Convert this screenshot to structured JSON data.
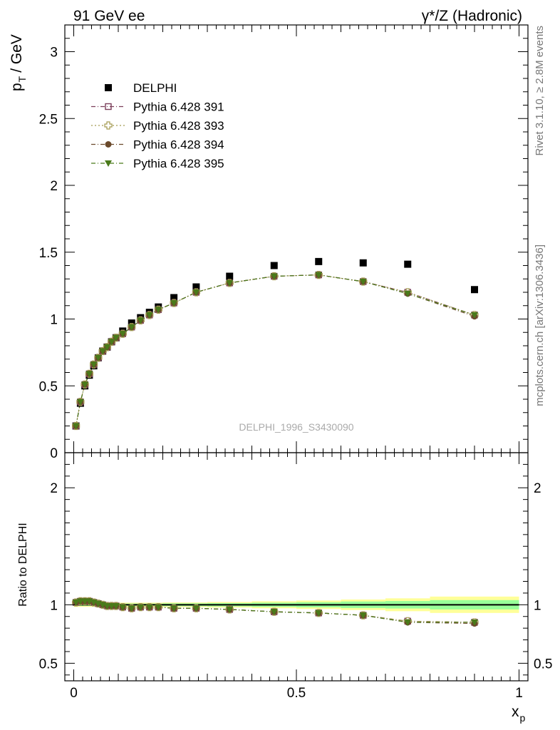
{
  "header": {
    "left": "91 GeV ee",
    "right": "γ*/Z (Hadronic)"
  },
  "side_labels": {
    "rivet": "Rivet 3.1.10, ≥ 2.8M events",
    "mcplots": "mcplots.cern.ch [arXiv:1306.3436]"
  },
  "watermark": "DELPHI_1996_S3430090",
  "chart_data": [
    {
      "type": "scatter",
      "panel": "main",
      "ylabel_main": "p",
      "ylabel_sub": "T",
      "ylabel_unit": "/ GeV",
      "xlabel_main": "x",
      "xlabel_sub": "p",
      "xlim": [
        -0.02,
        1.02
      ],
      "ylim": [
        0,
        3.2
      ],
      "yticks": [
        0,
        0.5,
        1,
        1.5,
        2,
        2.5,
        3
      ],
      "ytick_labels": [
        "0",
        "0.5",
        "1",
        "1.5",
        "2",
        "2.5",
        "3"
      ],
      "legend_position": "top-left",
      "x": [
        0.005,
        0.015,
        0.025,
        0.035,
        0.045,
        0.055,
        0.065,
        0.075,
        0.085,
        0.095,
        0.11,
        0.13,
        0.15,
        0.17,
        0.19,
        0.225,
        0.275,
        0.35,
        0.45,
        0.55,
        0.65,
        0.75,
        0.9
      ],
      "series": [
        {
          "name": "DELPHI",
          "color": "#000000",
          "marker": "square-filled",
          "values": [
            0.2,
            0.37,
            0.5,
            0.58,
            0.65,
            0.71,
            0.76,
            0.79,
            0.83,
            0.86,
            0.91,
            0.97,
            1.01,
            1.05,
            1.09,
            1.16,
            1.24,
            1.32,
            1.4,
            1.43,
            1.42,
            1.41,
            1.22
          ]
        },
        {
          "name": "Pythia 6.428 391",
          "color": "#7b3f5a",
          "marker": "square-open",
          "line": "dash-dot",
          "values": [
            0.2,
            0.38,
            0.51,
            0.59,
            0.66,
            0.71,
            0.76,
            0.79,
            0.83,
            0.86,
            0.89,
            0.94,
            0.99,
            1.03,
            1.07,
            1.12,
            1.2,
            1.27,
            1.32,
            1.33,
            1.28,
            1.2,
            1.03
          ]
        },
        {
          "name": "Pythia 6.428 393",
          "color": "#a39a50",
          "marker": "cross-open",
          "line": "dotted",
          "values": [
            0.2,
            0.38,
            0.51,
            0.59,
            0.66,
            0.71,
            0.76,
            0.79,
            0.83,
            0.86,
            0.89,
            0.94,
            0.99,
            1.03,
            1.07,
            1.12,
            1.2,
            1.27,
            1.32,
            1.33,
            1.28,
            1.2,
            1.03
          ]
        },
        {
          "name": "Pythia 6.428 394",
          "color": "#6b4a2b",
          "marker": "circle-filled",
          "line": "dash-dot",
          "values": [
            0.2,
            0.38,
            0.51,
            0.59,
            0.66,
            0.71,
            0.76,
            0.79,
            0.83,
            0.86,
            0.89,
            0.94,
            0.99,
            1.03,
            1.07,
            1.12,
            1.2,
            1.27,
            1.32,
            1.33,
            1.28,
            1.19,
            1.02
          ]
        },
        {
          "name": "Pythia 6.428 395",
          "color": "#4a7a1a",
          "marker": "triangle-down-filled",
          "line": "dash-dot",
          "values": [
            0.2,
            0.38,
            0.51,
            0.59,
            0.66,
            0.71,
            0.76,
            0.79,
            0.83,
            0.86,
            0.89,
            0.94,
            0.99,
            1.03,
            1.07,
            1.12,
            1.2,
            1.27,
            1.32,
            1.33,
            1.28,
            1.19,
            1.03
          ]
        }
      ]
    },
    {
      "type": "scatter",
      "panel": "ratio",
      "ylabel": "Ratio to DELPHI",
      "ylim": [
        0.35,
        2.3
      ],
      "yticks": [
        0.5,
        1,
        2
      ],
      "ytick_labels": [
        "0.5",
        "1",
        "2"
      ],
      "xticks": [
        0,
        0.5,
        1
      ],
      "xtick_labels": [
        "0",
        "0.5",
        "1"
      ],
      "reference": 1,
      "band_x": [
        0.0,
        0.1,
        0.2,
        0.3,
        0.4,
        0.5,
        0.6,
        0.7,
        0.8,
        1.0
      ],
      "band_inner": [
        0.01,
        0.01,
        0.012,
        0.014,
        0.018,
        0.022,
        0.028,
        0.032,
        0.04
      ],
      "band_outer": [
        0.018,
        0.018,
        0.02,
        0.024,
        0.03,
        0.036,
        0.045,
        0.055,
        0.07
      ],
      "x": [
        0.005,
        0.015,
        0.025,
        0.035,
        0.045,
        0.055,
        0.065,
        0.075,
        0.085,
        0.095,
        0.11,
        0.13,
        0.15,
        0.17,
        0.19,
        0.225,
        0.275,
        0.35,
        0.45,
        0.55,
        0.65,
        0.75,
        0.9
      ],
      "series": [
        {
          "name": "Pythia 6.428 391",
          "color": "#7b3f5a",
          "marker": "square-open",
          "values": [
            1.02,
            1.03,
            1.03,
            1.03,
            1.02,
            1.01,
            1.0,
            0.99,
            0.99,
            0.99,
            0.98,
            0.97,
            0.98,
            0.98,
            0.98,
            0.97,
            0.97,
            0.96,
            0.94,
            0.93,
            0.91,
            0.86,
            0.85
          ]
        },
        {
          "name": "Pythia 6.428 393",
          "color": "#a39a50",
          "marker": "cross-open",
          "values": [
            1.02,
            1.03,
            1.03,
            1.03,
            1.02,
            1.01,
            1.0,
            0.99,
            0.99,
            0.99,
            0.98,
            0.97,
            0.98,
            0.98,
            0.98,
            0.97,
            0.97,
            0.96,
            0.94,
            0.93,
            0.91,
            0.86,
            0.85
          ]
        },
        {
          "name": "Pythia 6.428 394",
          "color": "#6b4a2b",
          "marker": "circle-filled",
          "values": [
            1.02,
            1.03,
            1.03,
            1.03,
            1.02,
            1.01,
            1.0,
            0.99,
            0.99,
            0.99,
            0.98,
            0.97,
            0.98,
            0.98,
            0.98,
            0.97,
            0.97,
            0.96,
            0.94,
            0.93,
            0.91,
            0.85,
            0.84
          ]
        },
        {
          "name": "Pythia 6.428 395",
          "color": "#4a7a1a",
          "marker": "triangle-down-filled",
          "values": [
            1.02,
            1.03,
            1.03,
            1.03,
            1.02,
            1.01,
            1.0,
            0.99,
            0.99,
            0.99,
            0.98,
            0.97,
            0.98,
            0.98,
            0.98,
            0.97,
            0.97,
            0.96,
            0.94,
            0.93,
            0.91,
            0.85,
            0.85
          ]
        }
      ]
    }
  ]
}
